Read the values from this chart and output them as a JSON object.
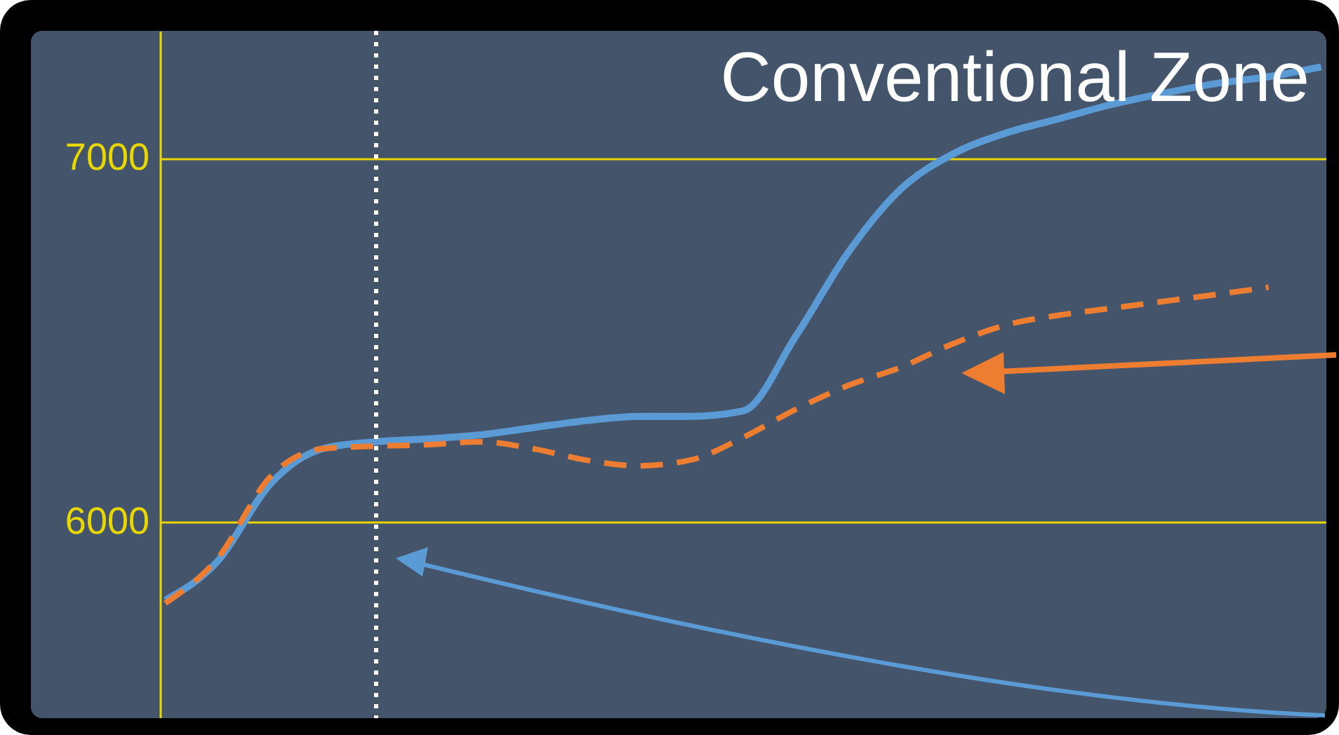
{
  "chart_data": {
    "type": "line",
    "categories": [
      null,
      null,
      null,
      null,
      null,
      null,
      null,
      null,
      null,
      null,
      null,
      null,
      null,
      null,
      null,
      null,
      null,
      null,
      null,
      null,
      null,
      null,
      null
    ],
    "series": [
      {
        "color": "#5b9bd5",
        "line_style": "solid",
        "values": [
          5784,
          5892,
          6104,
          6201,
          6220,
          6228,
          6239,
          6259,
          6278,
          6290,
          6290,
          6305,
          6510,
          6741,
          6915,
          7012,
          7069,
          7108,
          7147,
          7178,
          7205,
          7224,
          7251
        ]
      },
      {
        "color": "#ed7d31",
        "line_style": "dashed",
        "values": [
          5776,
          5900,
          6124,
          6201,
          6208,
          6212,
          6220,
          6201,
          6170,
          6154,
          6170,
          6232,
          6309,
          6375,
          6425,
          6490,
          6541,
          6568,
          6587,
          6606,
          6625,
          6645,
          null
        ]
      }
    ],
    "ylim": [
      5460,
      7350
    ],
    "yticks": [
      6000,
      7000
    ],
    "grid": "y",
    "tick_labels": "y",
    "annotations": [
      "Conventional Zone"
    ]
  }
}
